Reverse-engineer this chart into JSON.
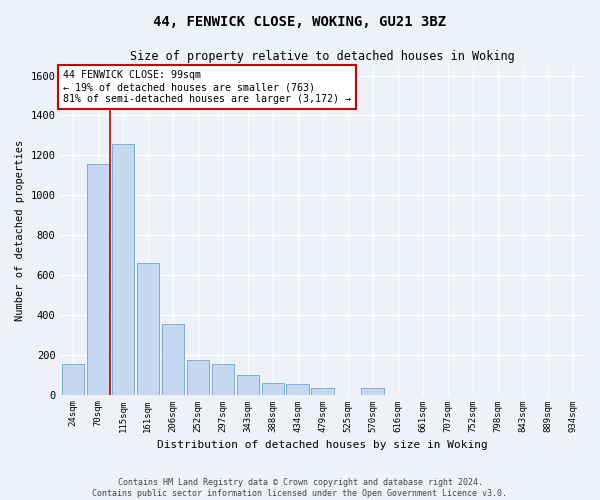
{
  "title1": "44, FENWICK CLOSE, WOKING, GU21 3BZ",
  "title2": "Size of property relative to detached houses in Woking",
  "xlabel": "Distribution of detached houses by size in Woking",
  "ylabel": "Number of detached properties",
  "categories": [
    "24sqm",
    "70sqm",
    "115sqm",
    "161sqm",
    "206sqm",
    "252sqm",
    "297sqm",
    "343sqm",
    "388sqm",
    "434sqm",
    "479sqm",
    "525sqm",
    "570sqm",
    "616sqm",
    "661sqm",
    "707sqm",
    "752sqm",
    "798sqm",
    "843sqm",
    "889sqm",
    "934sqm"
  ],
  "values": [
    155,
    1155,
    1255,
    660,
    355,
    175,
    155,
    100,
    60,
    55,
    35,
    0,
    35,
    0,
    0,
    0,
    0,
    0,
    0,
    0,
    0
  ],
  "bar_color": "#c5d8f0",
  "bar_edge_color": "#7bafd4",
  "ylim": [
    0,
    1650
  ],
  "yticks": [
    0,
    200,
    400,
    600,
    800,
    1000,
    1200,
    1400,
    1600
  ],
  "annotation_line1": "44 FENWICK CLOSE: 99sqm",
  "annotation_line2": "← 19% of detached houses are smaller (763)",
  "annotation_line3": "81% of semi-detached houses are larger (3,172) →",
  "annotation_box_color": "#ffffff",
  "annotation_box_edge": "#cc0000",
  "property_vline_color": "#cc0000",
  "footer1": "Contains HM Land Registry data © Crown copyright and database right 2024.",
  "footer2": "Contains public sector information licensed under the Open Government Licence v3.0.",
  "background_color": "#eef2f8",
  "plot_background": "#eef2f8",
  "grid_color": "#ffffff",
  "vline_x": 1.47
}
